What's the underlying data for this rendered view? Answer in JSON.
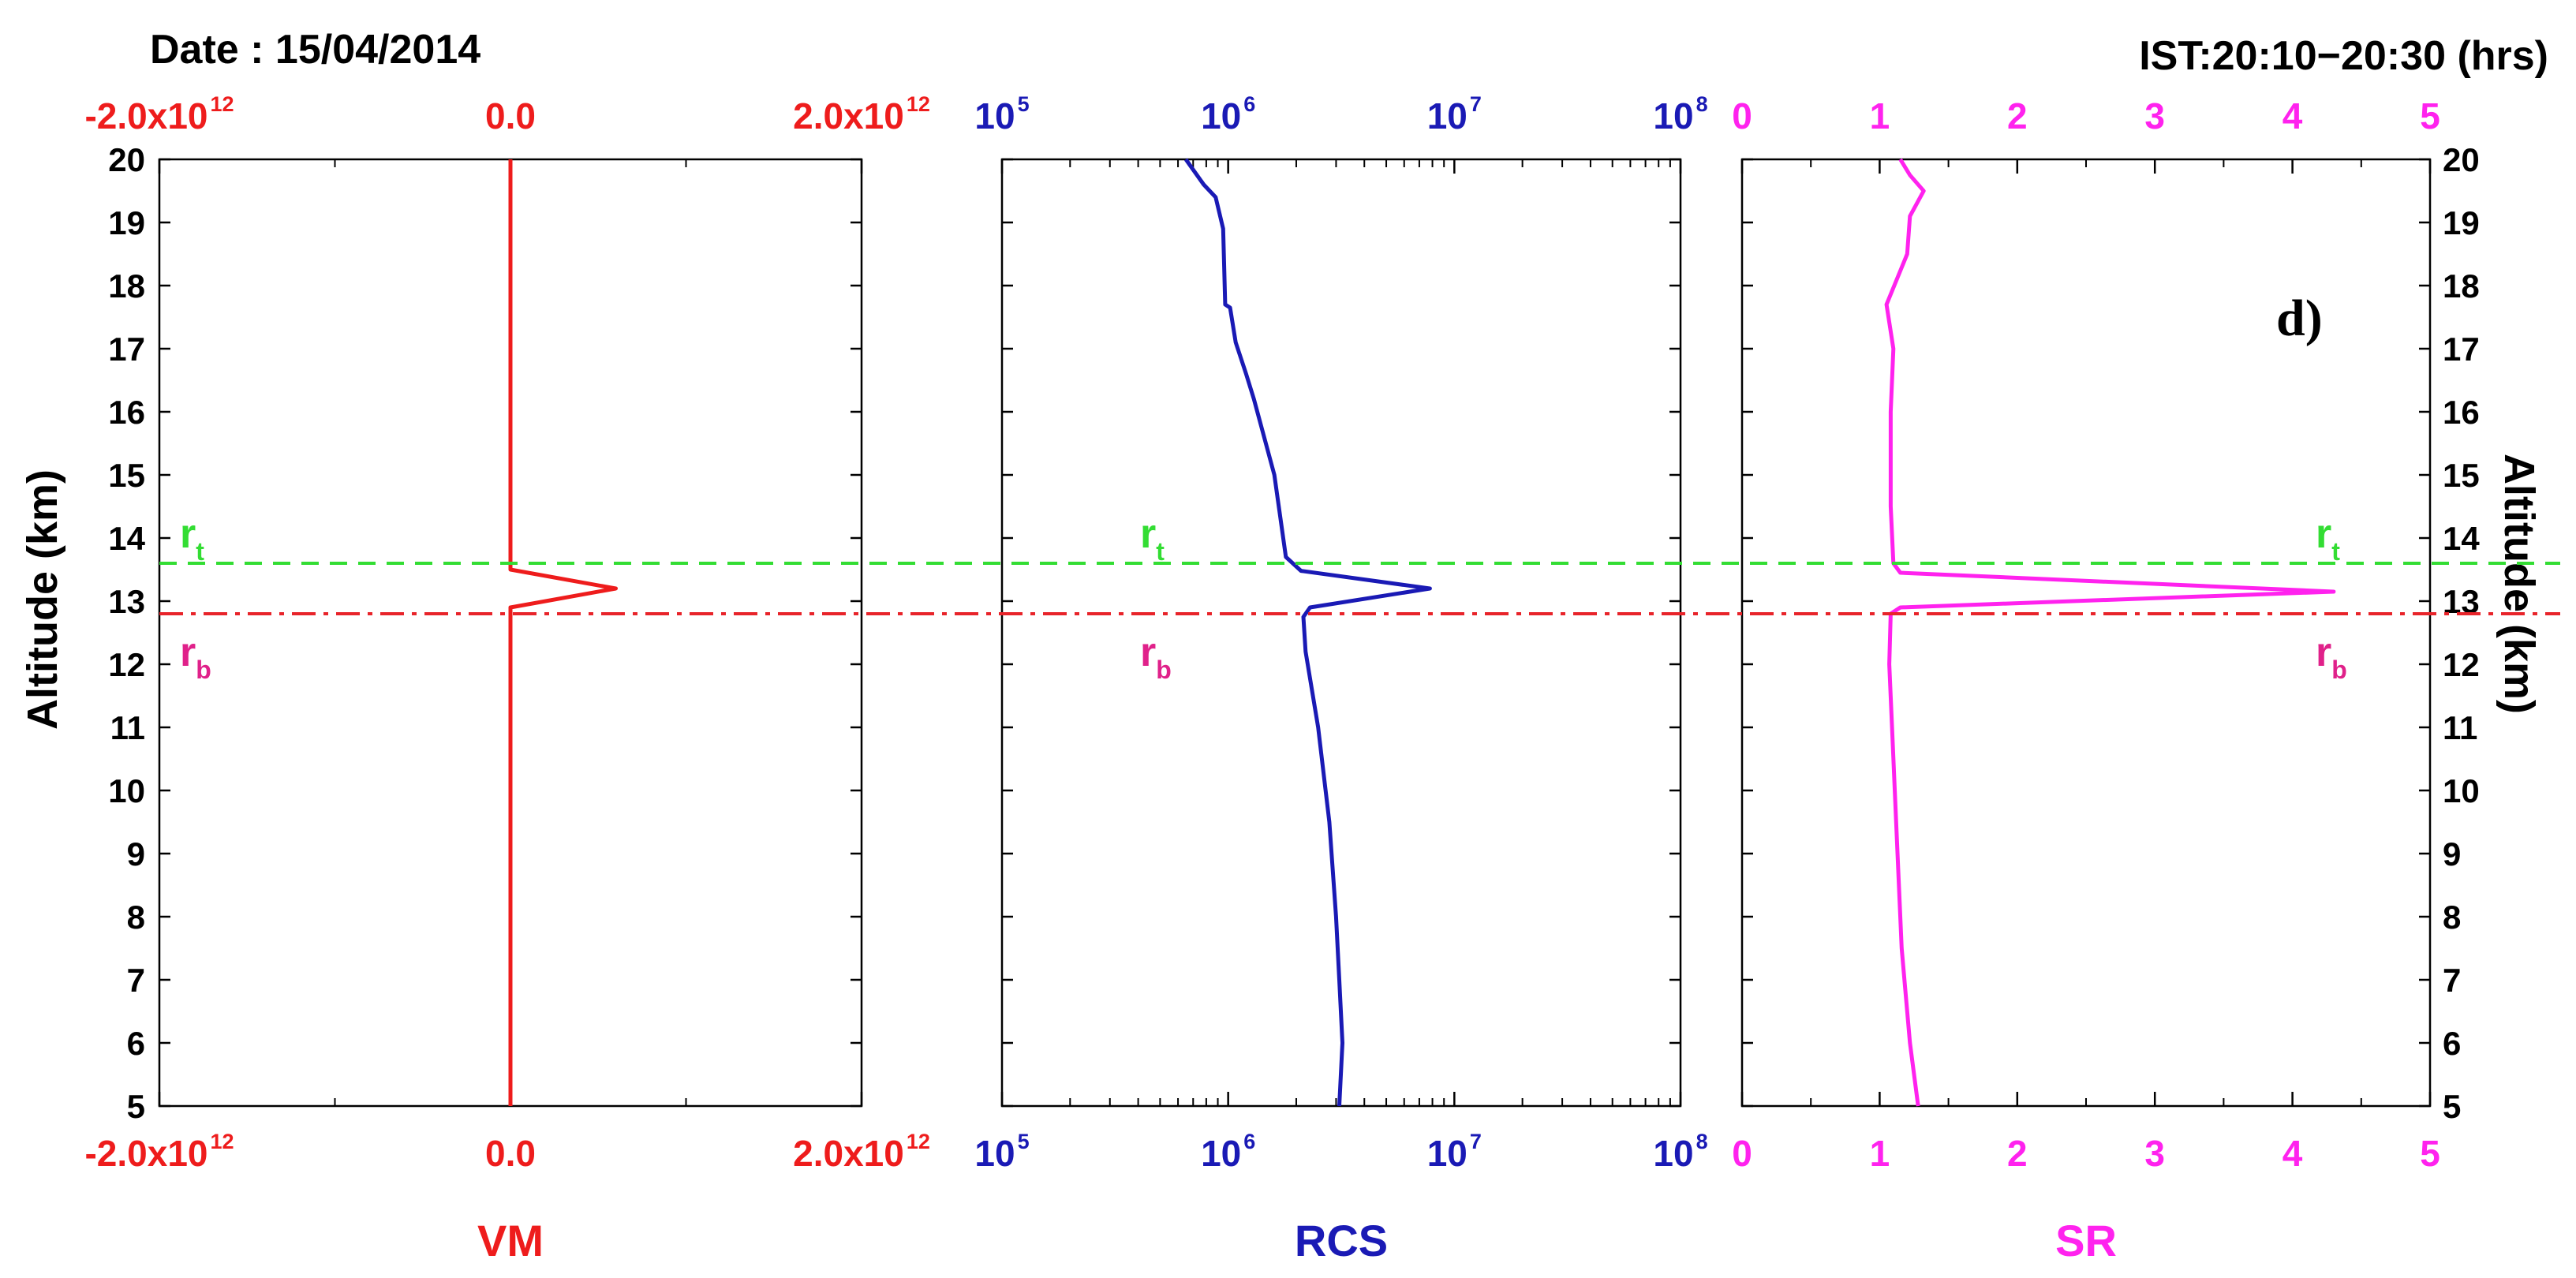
{
  "title_left": "Date : 15/04/2014",
  "title_right": "IST:20:10−20:30 (hrs)",
  "panel_label": "d)",
  "y_axis": {
    "label_left": "Altitude (km)",
    "label_right": "Altitude (km)",
    "range": [
      5,
      20
    ],
    "ticks": [
      "5",
      "6",
      "7",
      "8",
      "9",
      "10",
      "11",
      "12",
      "13",
      "14",
      "15",
      "16",
      "17",
      "18",
      "19",
      "20"
    ]
  },
  "boundaries": [
    {
      "letter": "r",
      "sub": "t",
      "altitude_km": 13.6,
      "color": "#33dd33",
      "style": "dashed"
    },
    {
      "letter": "r",
      "sub": "b",
      "altitude_km": 12.8,
      "color": "#e8242a",
      "sub_color": "#e0218a",
      "style": "dash-dot"
    }
  ],
  "chart_data": [
    {
      "type": "line",
      "xlabel": "VM",
      "color": "#ee1c1c",
      "xscale": "linear",
      "xlim": [
        -2000000000000.0,
        2000000000000.0
      ],
      "xticks": [
        {
          "v": -2000000000000.0,
          "m": "-2.0x10",
          "e": "12"
        },
        {
          "v": 0,
          "m": "0.0",
          "e": ""
        },
        {
          "v": 2000000000000.0,
          "m": "2.0x10",
          "e": "12"
        }
      ],
      "minor_step": 1000000000000.0,
      "points": [
        [
          0,
          5.0
        ],
        [
          0,
          12.8
        ],
        [
          0,
          12.9
        ],
        [
          600000000000.0,
          13.2
        ],
        [
          0,
          13.5
        ],
        [
          0,
          13.6
        ],
        [
          0,
          20.0
        ]
      ]
    },
    {
      "type": "line",
      "xlabel": "RCS",
      "color": "#1a1ab5",
      "xscale": "log",
      "xlim": [
        100000.0,
        100000000.0
      ],
      "xticks": [
        {
          "v": 100000.0,
          "m": "10",
          "e": "5"
        },
        {
          "v": 1000000.0,
          "m": "10",
          "e": "6"
        },
        {
          "v": 10000000.0,
          "m": "10",
          "e": "7"
        },
        {
          "v": 100000000.0,
          "m": "10",
          "e": "8"
        }
      ],
      "points": [
        [
          3100000.0,
          5.0
        ],
        [
          3200000.0,
          6.0
        ],
        [
          3100000.0,
          7.0
        ],
        [
          3000000.0,
          8.0
        ],
        [
          2800000.0,
          9.5
        ],
        [
          2500000.0,
          11.0
        ],
        [
          2200000.0,
          12.2
        ],
        [
          2150000.0,
          12.75
        ],
        [
          2300000.0,
          12.9
        ],
        [
          7800000.0,
          13.2
        ],
        [
          2100000.0,
          13.48
        ],
        [
          1800000.0,
          13.7
        ],
        [
          1600000.0,
          15.0
        ],
        [
          1300000.0,
          16.2
        ],
        [
          1200000.0,
          16.6
        ],
        [
          1080000.0,
          17.1
        ],
        [
          1020000.0,
          17.65
        ],
        [
          970000.0,
          17.7
        ],
        [
          950000.0,
          18.9
        ],
        [
          880000.0,
          19.4
        ],
        [
          780000.0,
          19.6
        ],
        [
          650000.0,
          20.0
        ]
      ]
    },
    {
      "type": "line",
      "xlabel": "SR",
      "color": "#ff22ee",
      "xscale": "linear",
      "xlim": [
        0,
        5
      ],
      "xticks": [
        {
          "v": 0,
          "m": "0",
          "e": ""
        },
        {
          "v": 1,
          "m": "1",
          "e": ""
        },
        {
          "v": 2,
          "m": "2",
          "e": ""
        },
        {
          "v": 3,
          "m": "3",
          "e": ""
        },
        {
          "v": 4,
          "m": "4",
          "e": ""
        },
        {
          "v": 5,
          "m": "5",
          "e": ""
        }
      ],
      "minor_step": 0.5,
      "points": [
        [
          1.28,
          5.0
        ],
        [
          1.22,
          6.0
        ],
        [
          1.16,
          7.5
        ],
        [
          1.12,
          9.5
        ],
        [
          1.09,
          11.0
        ],
        [
          1.07,
          12.0
        ],
        [
          1.08,
          12.8
        ],
        [
          1.15,
          12.9
        ],
        [
          4.3,
          13.15
        ],
        [
          1.15,
          13.45
        ],
        [
          1.1,
          13.6
        ],
        [
          1.08,
          14.5
        ],
        [
          1.08,
          16.0
        ],
        [
          1.1,
          17.0
        ],
        [
          1.05,
          17.7
        ],
        [
          1.2,
          18.5
        ],
        [
          1.22,
          19.1
        ],
        [
          1.32,
          19.5
        ],
        [
          1.22,
          19.75
        ],
        [
          1.15,
          20.0
        ]
      ]
    }
  ]
}
